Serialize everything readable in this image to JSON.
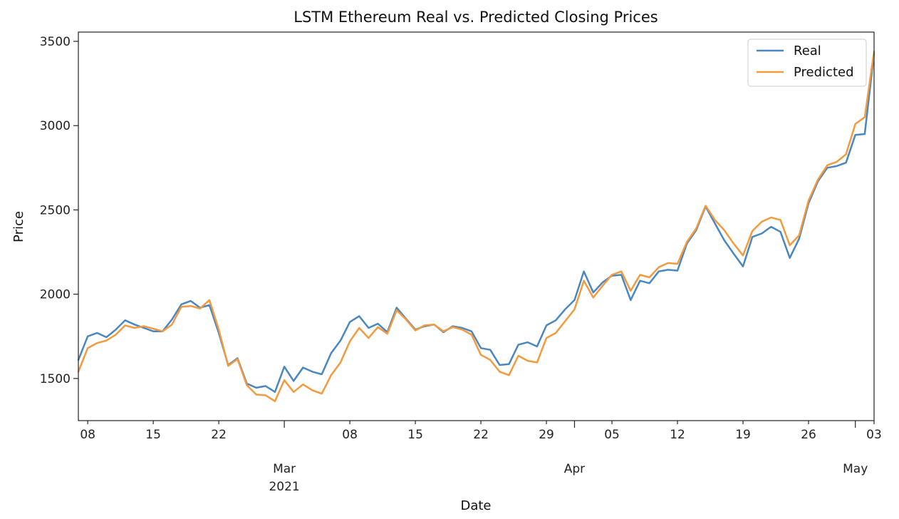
{
  "chart_data": {
    "type": "line",
    "title": "LSTM Ethereum Real vs. Predicted Closing Prices",
    "xlabel": "Date",
    "ylabel": "Price",
    "x_start": "2021-02-07",
    "x_end": "2021-05-03",
    "ylim": [
      1250,
      3555
    ],
    "grid": false,
    "legend_position": "top-right",
    "y_ticks": [
      1500,
      2000,
      2500,
      3000,
      3500
    ],
    "x_minor_ticks": [
      {
        "date": "2021-02-08",
        "label": "08"
      },
      {
        "date": "2021-02-15",
        "label": "15"
      },
      {
        "date": "2021-02-22",
        "label": "22"
      },
      {
        "date": "2021-03-08",
        "label": "08"
      },
      {
        "date": "2021-03-15",
        "label": "15"
      },
      {
        "date": "2021-03-22",
        "label": "22"
      },
      {
        "date": "2021-03-29",
        "label": "29"
      },
      {
        "date": "2021-04-05",
        "label": "05"
      },
      {
        "date": "2021-04-12",
        "label": "12"
      },
      {
        "date": "2021-04-19",
        "label": "19"
      },
      {
        "date": "2021-04-26",
        "label": "26"
      },
      {
        "date": "2021-05-03",
        "label": "03"
      }
    ],
    "x_major_ticks": [
      {
        "date": "2021-03-01",
        "label": "Mar",
        "sublabel": "2021"
      },
      {
        "date": "2021-04-01",
        "label": "Apr",
        "sublabel": ""
      },
      {
        "date": "2021-05-01",
        "label": "May",
        "sublabel": ""
      }
    ],
    "series": [
      {
        "name": "Real",
        "color": "#4a86c0",
        "values": [
          1610,
          1750,
          1770,
          1745,
          1790,
          1845,
          1820,
          1800,
          1780,
          1780,
          1850,
          1940,
          1960,
          1920,
          1935,
          1770,
          1580,
          1620,
          1470,
          1445,
          1455,
          1420,
          1570,
          1485,
          1565,
          1540,
          1525,
          1650,
          1725,
          1835,
          1870,
          1800,
          1825,
          1775,
          1920,
          1855,
          1790,
          1810,
          1820,
          1775,
          1810,
          1800,
          1780,
          1680,
          1670,
          1580,
          1585,
          1700,
          1715,
          1690,
          1815,
          1845,
          1910,
          1965,
          2135,
          2010,
          2070,
          2110,
          2115,
          1965,
          2080,
          2065,
          2135,
          2145,
          2140,
          2300,
          2380,
          2520,
          2420,
          2320,
          2240,
          2165,
          2340,
          2360,
          2400,
          2370,
          2215,
          2330,
          2540,
          2670,
          2750,
          2760,
          2780,
          2945,
          2950,
          3430
        ]
      },
      {
        "name": "Predicted",
        "color": "#f39a3f",
        "values": [
          1540,
          1680,
          1710,
          1725,
          1760,
          1815,
          1800,
          1810,
          1795,
          1780,
          1820,
          1925,
          1930,
          1915,
          1965,
          1790,
          1575,
          1615,
          1460,
          1405,
          1400,
          1365,
          1490,
          1420,
          1465,
          1430,
          1410,
          1520,
          1595,
          1720,
          1800,
          1740,
          1805,
          1765,
          1905,
          1850,
          1785,
          1815,
          1820,
          1780,
          1805,
          1790,
          1760,
          1640,
          1610,
          1540,
          1520,
          1635,
          1605,
          1595,
          1740,
          1770,
          1840,
          1910,
          2080,
          1980,
          2050,
          2115,
          2135,
          2020,
          2115,
          2100,
          2160,
          2185,
          2180,
          2310,
          2390,
          2525,
          2440,
          2380,
          2300,
          2230,
          2375,
          2430,
          2455,
          2440,
          2290,
          2350,
          2555,
          2680,
          2765,
          2785,
          2830,
          3010,
          3050,
          3440
        ]
      }
    ]
  }
}
